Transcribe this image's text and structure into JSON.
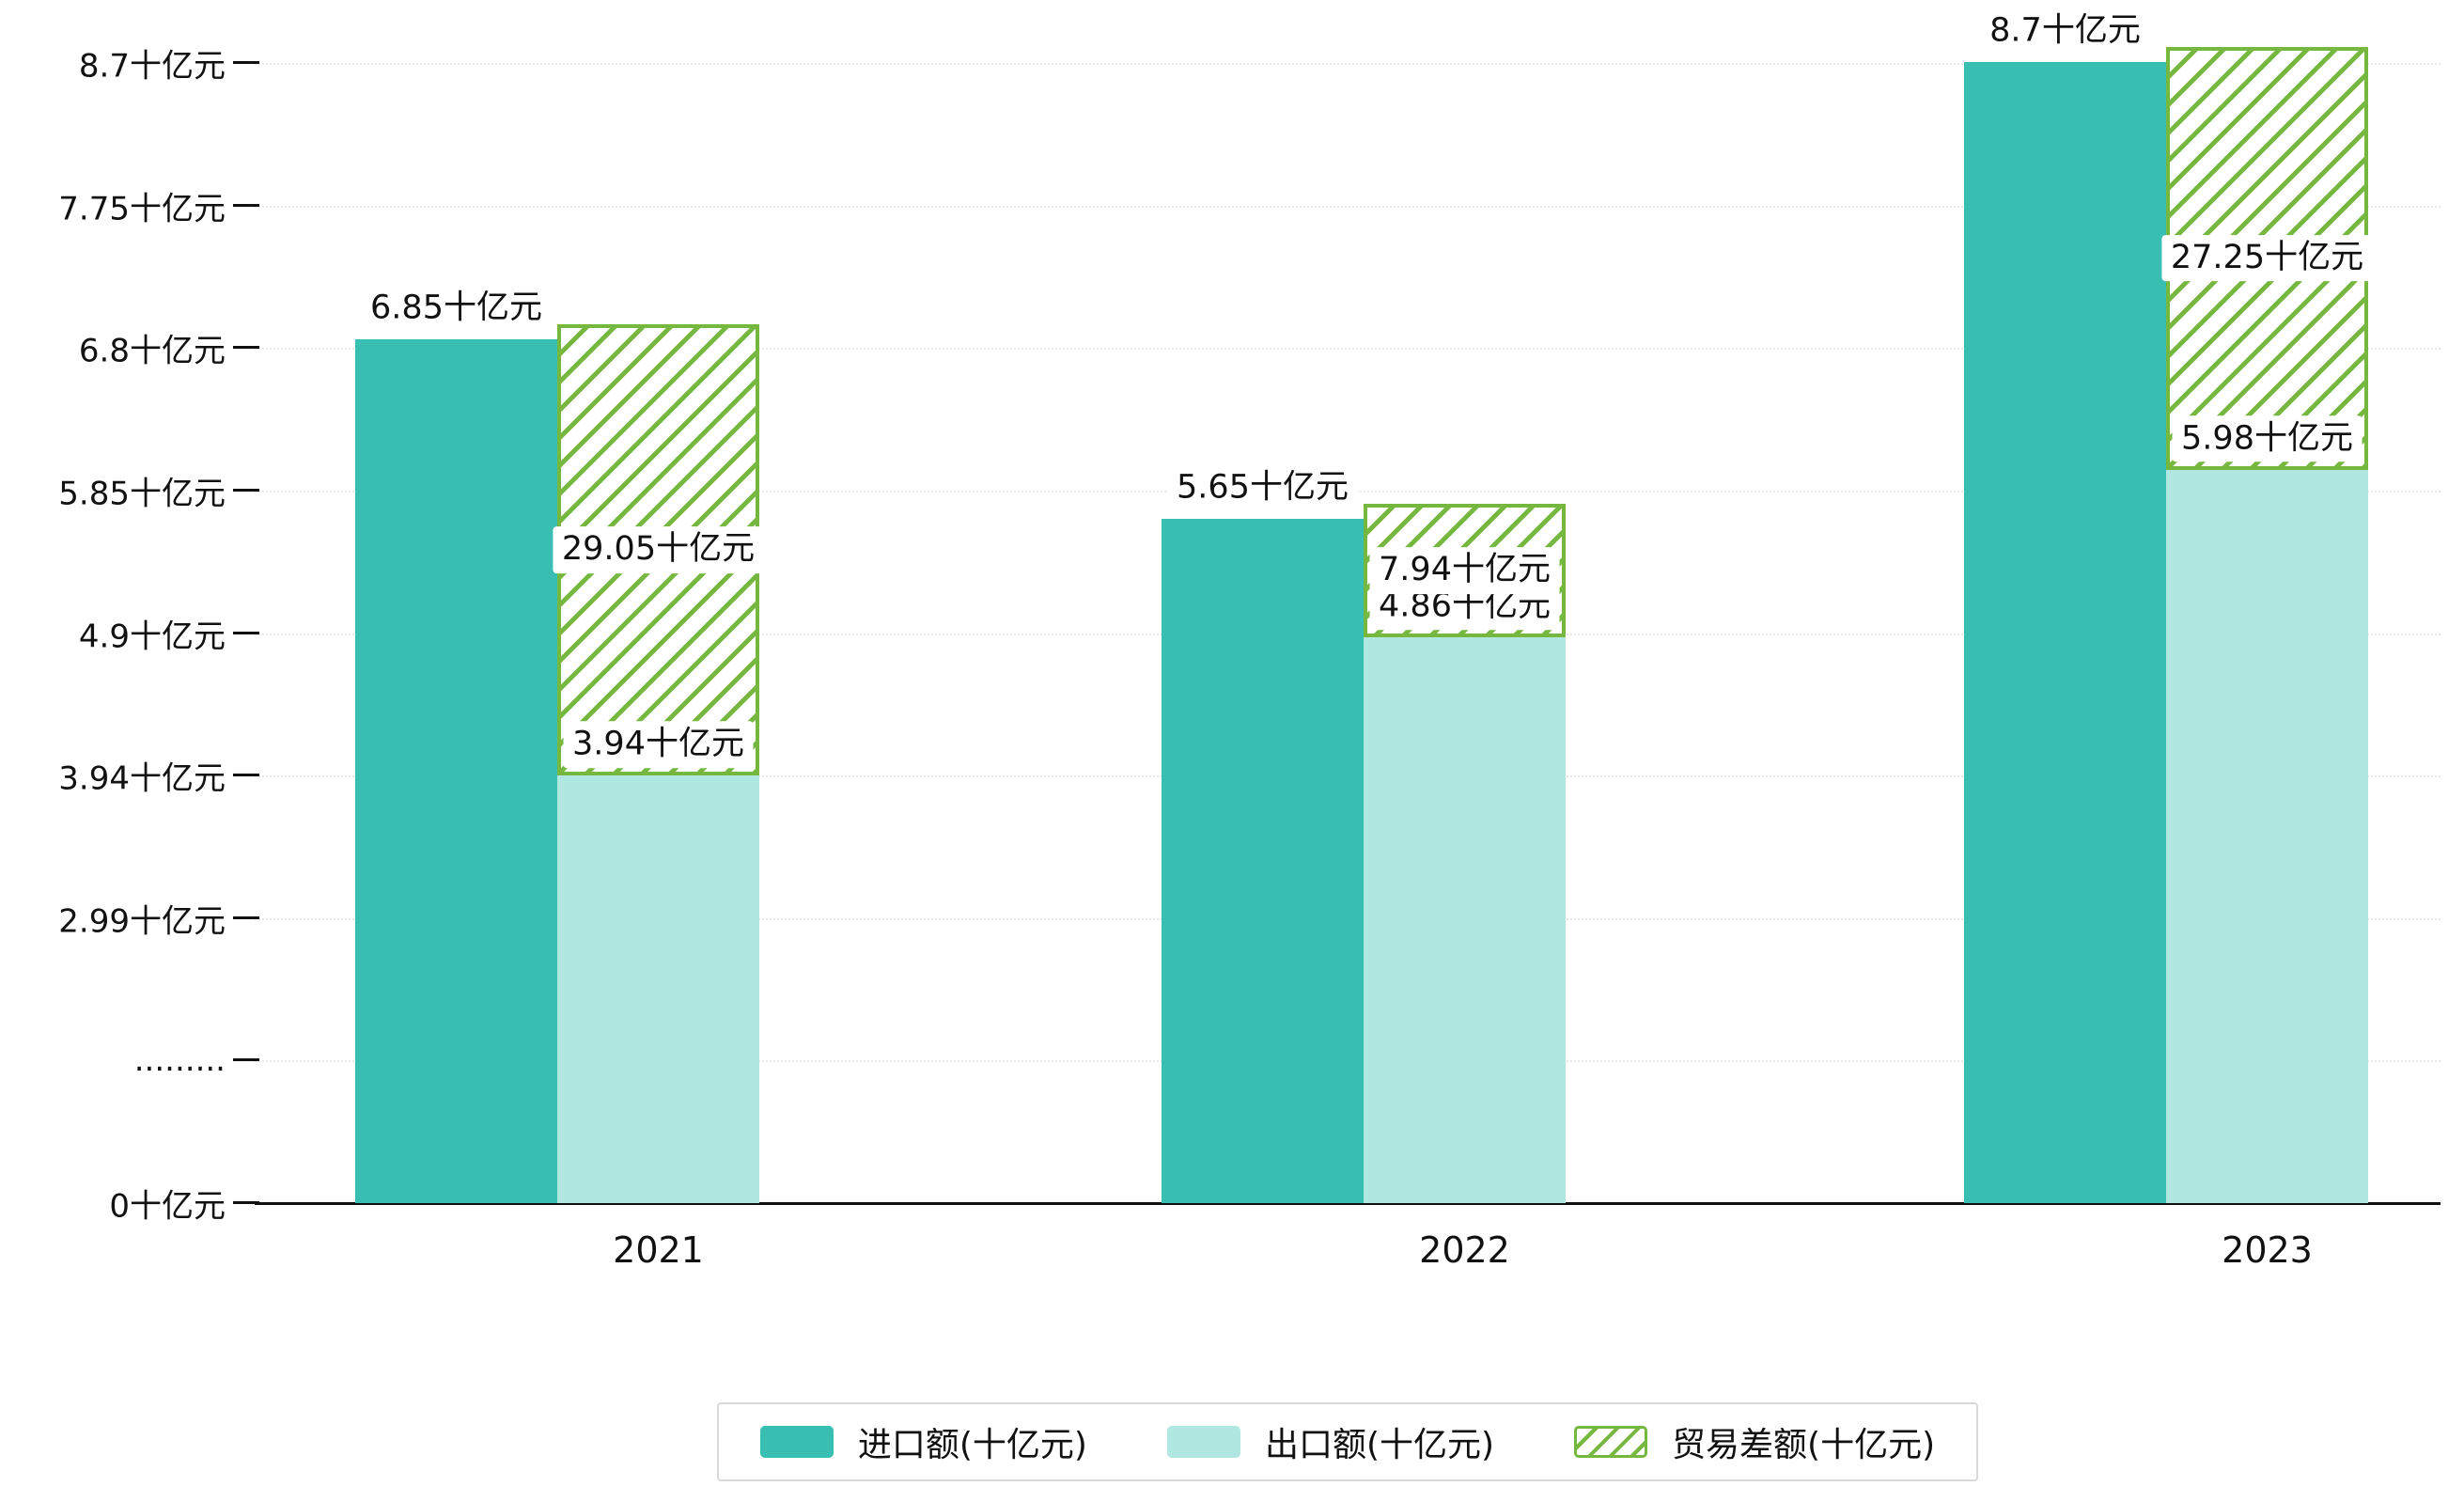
{
  "chart_data": {
    "type": "bar",
    "title": "",
    "categories": [
      "2021",
      "2022",
      "2023"
    ],
    "series": [
      {
        "name": "进口额(十亿元)",
        "type": "bar",
        "color": "#38bfb1",
        "values": [
          6.85,
          5.65,
          8.7
        ],
        "data_labels": [
          "6.85十亿元",
          "5.65十亿元",
          "8.7十亿元"
        ]
      },
      {
        "name": "出口额(十亿元)",
        "type": "bar",
        "color": "#b0e7e0",
        "values": [
          3.94,
          4.86,
          5.98
        ],
        "data_labels": [
          "3.94十亿元",
          "4.86十亿元",
          "5.98十亿元"
        ]
      },
      {
        "name": "贸易差额(十亿元)",
        "type": "bar-hatched-outline",
        "color": "#76b83f",
        "values": [
          29.05,
          7.94,
          27.25
        ],
        "data_labels": [
          "29.05十亿元",
          "7.94十亿元",
          "27.25十亿元"
        ]
      }
    ],
    "y_ticks_bottom_to_top": [
      "0十亿元",
      ".........",
      "2.99十亿元",
      "3.94十亿元",
      "4.9十亿元",
      "5.85十亿元",
      "6.8十亿元",
      "7.75十亿元",
      "8.7十亿元"
    ],
    "axis_break_marker": ".........",
    "ylim": [
      0,
      8.7
    ],
    "xlabel": "",
    "ylabel": "",
    "grid": "dotted-horizontal",
    "legend_position": "bottom-center",
    "background_color": "#ffffff"
  }
}
